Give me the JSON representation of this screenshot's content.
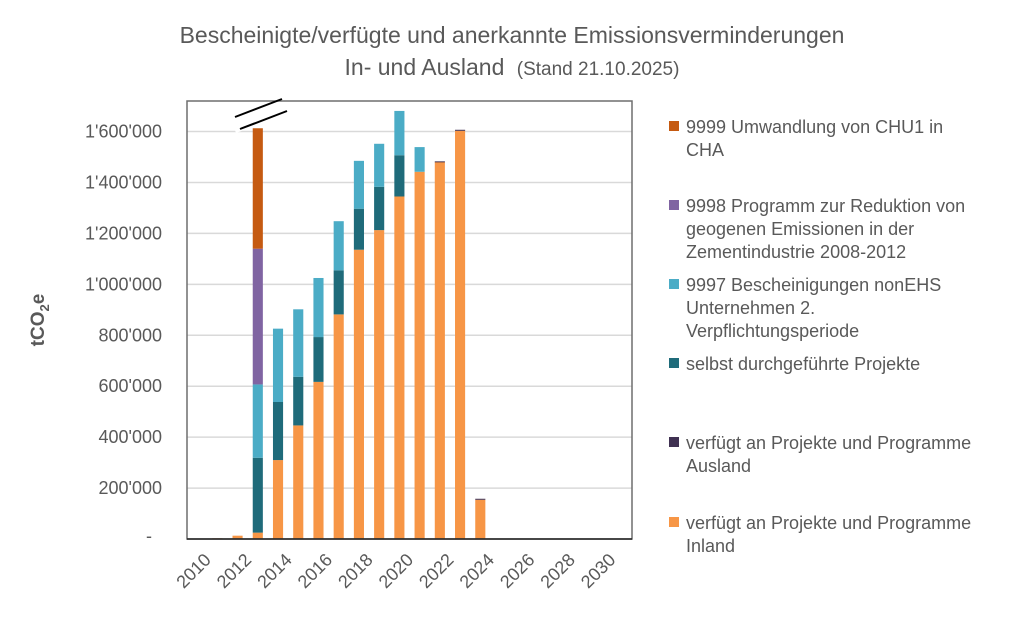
{
  "chart_data": {
    "type": "bar",
    "stacked": true,
    "title": "Bescheinigte/verfügte und anerkannte Emissionsverminderungen",
    "title_line2": "In- und Ausland",
    "subtitle": "(Stand 21.10.2025)",
    "ylabel": "tCO",
    "ylabel_sub": "2",
    "ylabel_suffix": "e",
    "xlabel": "",
    "ylim": [
      0,
      1720000
    ],
    "axis_break": true,
    "grid": true,
    "legend_placement": "right",
    "y_ticks": [
      0,
      200000,
      400000,
      600000,
      800000,
      1000000,
      1200000,
      1400000,
      1600000
    ],
    "y_tick_labels": [
      "-",
      "200'000",
      "400'000",
      "600'000",
      "800'000",
      "1'000'000",
      "1'200'000",
      "1'400'000",
      "1'600'000"
    ],
    "categories": [
      2010,
      2011,
      2012,
      2013,
      2014,
      2015,
      2016,
      2017,
      2018,
      2019,
      2020,
      2021,
      2022,
      2023,
      2024,
      2025,
      2026,
      2027,
      2028,
      2029,
      2030,
      2031
    ],
    "x_tick_labels": [
      "2010",
      "2012",
      "2014",
      "2016",
      "2018",
      "2020",
      "2022",
      "2024",
      "2026",
      "2028",
      "2030"
    ],
    "series": [
      {
        "name": "verfügt an Projekte und Programme Inland",
        "color": "#f79646",
        "values": [
          0,
          3000,
          13000,
          25000,
          310000,
          446000,
          617000,
          882000,
          1136000,
          1213000,
          1345000,
          1442000,
          1481000,
          1603000,
          154000,
          0,
          0,
          0,
          0,
          0,
          0,
          0
        ]
      },
      {
        "name": "verfügt an Projekte und Programme Ausland",
        "color": "#403152",
        "values": [
          0,
          0,
          0,
          0,
          0,
          0,
          0,
          0,
          0,
          0,
          0,
          0,
          2000,
          4000,
          4000,
          0,
          0,
          0,
          0,
          0,
          0,
          0
        ]
      },
      {
        "name": "selbst durchgeführte Projekte",
        "color": "#1f6b7a",
        "values": [
          0,
          0,
          0,
          294000,
          228000,
          191000,
          176000,
          173000,
          161000,
          170000,
          162000,
          0,
          0,
          0,
          0,
          0,
          0,
          0,
          0,
          0,
          0,
          0
        ]
      },
      {
        "name": "9997 Bescheinigungen nonEHS Unternehmen 2. Verpflichtungsperiode",
        "color": "#4bacc6",
        "values": [
          0,
          0,
          0,
          288000,
          288000,
          265000,
          232000,
          193000,
          188000,
          169000,
          174000,
          97000,
          0,
          0,
          0,
          0,
          0,
          0,
          0,
          0,
          0,
          0
        ]
      },
      {
        "name": "9998 Programm zur Reduktion von geogenen Emissionen in der Zementindustrie 2008-2012",
        "color": "#8064a2",
        "values": [
          0,
          0,
          0,
          533000,
          0,
          0,
          0,
          0,
          0,
          0,
          0,
          0,
          0,
          0,
          0,
          0,
          0,
          0,
          0,
          0,
          0,
          0
        ]
      },
      {
        "name": "9999 Umwandlung von CHU1 in CHA",
        "color": "#c55a11",
        "values": [
          0,
          0,
          0,
          473000,
          0,
          0,
          0,
          0,
          0,
          0,
          0,
          0,
          0,
          0,
          0,
          0,
          0,
          0,
          0,
          0,
          0,
          0
        ]
      }
    ],
    "legend": [
      {
        "lines": [
          "9999 Umwandlung von CHU1 in",
          "CHA"
        ],
        "color": "#c55a11"
      },
      {
        "lines": [
          "9998 Programm zur Reduktion von",
          "geogenen Emissionen in der",
          "Zementindustrie 2008-2012"
        ],
        "color": "#8064a2"
      },
      {
        "lines": [
          "9997 Bescheinigungen nonEHS",
          "Unternehmen 2.",
          "Verpflichtungsperiode"
        ],
        "color": "#4bacc6"
      },
      {
        "lines": [
          "selbst durchgeführte Projekte"
        ],
        "color": "#1f6b7a"
      },
      {
        "lines": [
          "verfügt an Projekte und Programme",
          "Ausland"
        ],
        "color": "#403152"
      },
      {
        "lines": [
          "verfügt an Projekte und Programme",
          "Inland"
        ],
        "color": "#f79646"
      }
    ]
  }
}
